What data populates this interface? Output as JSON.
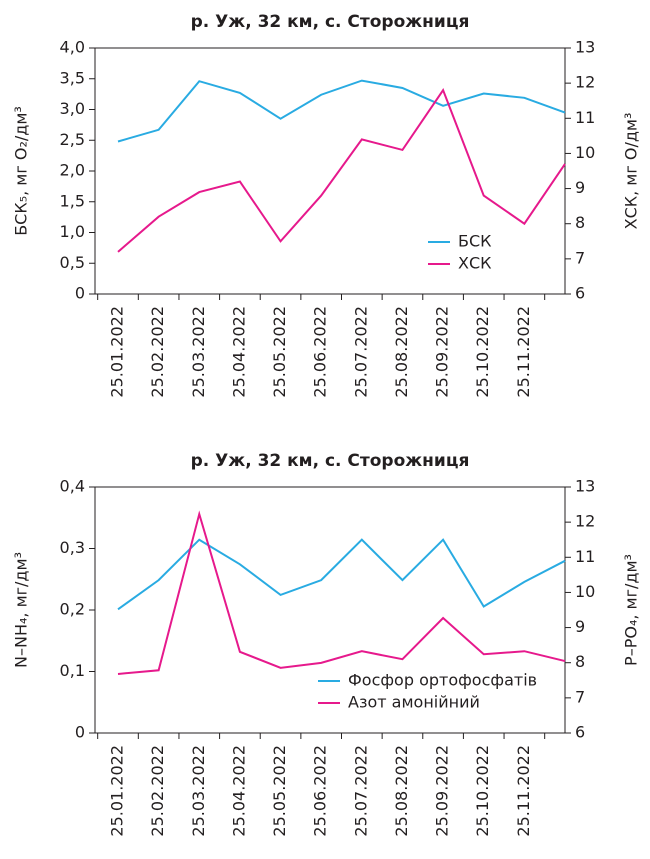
{
  "chart_data": [
    {
      "type": "line",
      "title": "р. Уж, 32 км, с. Сторожниця",
      "ylabel": "БСК₅, мг O₂/дм³",
      "y2label": "ХСК, мг O/дм³",
      "categories": [
        "25.01.2022",
        "25.02.2022",
        "25.03.2022",
        "25.04.2022",
        "25.05.2022",
        "25.06.2022",
        "25.07.2022",
        "25.08.2022",
        "25.09.2022",
        "25.10.2022",
        "25.11.2022",
        null
      ],
      "series": [
        {
          "name": "БСК",
          "color": "#29abe2",
          "values": [
            2.48,
            2.67,
            3.46,
            3.27,
            2.85,
            3.24,
            3.47,
            3.35,
            3.06,
            3.26,
            3.19,
            2.95
          ]
        },
        {
          "name": "ХСК",
          "color": "#e6198c",
          "axis": "y2",
          "values": [
            7.2,
            8.2,
            8.9,
            9.2,
            7.5,
            8.8,
            10.4,
            10.1,
            11.8,
            8.8,
            8.0,
            9.7
          ]
        }
      ],
      "ylim": [
        0,
        4
      ],
      "yticks": [
        0,
        {
          "value": 0.5,
          "label": "0,5"
        },
        {
          "value": 1,
          "label": "1,0"
        },
        {
          "value": 1.5,
          "label": "1,5"
        },
        {
          "value": 2,
          "label": "2,0"
        },
        {
          "value": 2.5,
          "label": "2,5"
        },
        {
          "value": 3,
          "label": "3,0"
        },
        {
          "value": 3.5,
          "label": "3,5"
        },
        {
          "value": 4,
          "label": "4,0"
        }
      ],
      "y2lim": [
        6,
        13
      ],
      "y2ticks": [
        6,
        7,
        8,
        9,
        10,
        11,
        12,
        13
      ],
      "legend": "lower right"
    },
    {
      "type": "line",
      "title": "р. Уж, 32 км, с. Сторожниця",
      "ylabel": "N–NH₄, мг/дм³",
      "y2label": "P–PO₄, мг/дм³",
      "categories": [
        "25.01.2022",
        "25.02.2022",
        "25.03.2022",
        "25.04.2022",
        "25.05.2022",
        "25.06.2022",
        "25.07.2022",
        "25.08.2022",
        "25.09.2022",
        "25.10.2022",
        "25.11.2022",
        null
      ],
      "series": [
        {
          "name": "Фосфор ортофосфатів",
          "color": "#29abe2",
          "axis": "y2",
          "values": [
            9.52,
            10.35,
            11.5,
            10.8,
            9.93,
            10.35,
            11.5,
            10.35,
            11.5,
            9.6,
            10.3,
            10.9
          ]
        },
        {
          "name": "Азот амонійний",
          "color": "#e6198c",
          "values": [
            0.096,
            0.102,
            0.356,
            0.132,
            0.106,
            0.114,
            0.133,
            0.12,
            0.187,
            0.128,
            0.133,
            0.117
          ]
        }
      ],
      "ylim": [
        0,
        0.4
      ],
      "yticks": [
        0,
        {
          "value": 0.1,
          "label": "0,1"
        },
        {
          "value": 0.2,
          "label": "0,2"
        },
        {
          "value": 0.3,
          "label": "0,3"
        },
        {
          "value": 0.4,
          "label": "0,4"
        }
      ],
      "y2lim": [
        6,
        13
      ],
      "y2ticks": [
        6,
        7,
        8,
        9,
        10,
        11,
        12,
        13
      ],
      "legend": "lower right"
    }
  ]
}
